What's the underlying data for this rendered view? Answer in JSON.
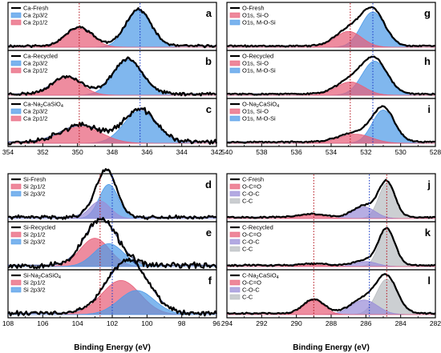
{
  "figure": {
    "xlabel_left": "Binding Energy (eV)",
    "xlabel_right": "Binding Energy (eV)"
  },
  "colors": {
    "red_fill": "#e8607a",
    "blue_fill": "#4f9be8",
    "purple_fill": "#9a8ed8",
    "gray_fill": "#b8bcc0",
    "red_ref": "#b8202a",
    "blue_ref": "#2040c8",
    "data_line": "#000000",
    "fit_line": "#1a2a6c"
  },
  "chart_data": [
    {
      "id": "a",
      "letter": "a",
      "type": "area",
      "col": "left",
      "row": 0,
      "xlim": [
        354,
        342
      ],
      "ylim": [
        0,
        1
      ],
      "legend": [
        {
          "text": "Ca-Fresh",
          "kind": "line"
        },
        {
          "text": "Ca 2p3/2",
          "kind": "blue"
        },
        {
          "text": "Ca 2p1/2",
          "kind": "red"
        }
      ],
      "peaks": [
        {
          "center": 346.5,
          "height": 0.88,
          "fwhm": 1.7,
          "color": "blue"
        },
        {
          "center": 349.9,
          "height": 0.45,
          "fwhm": 1.8,
          "color": "red"
        }
      ],
      "refs": [
        {
          "x": 349.9,
          "color": "red"
        },
        {
          "x": 346.4,
          "color": "blue"
        }
      ],
      "noise": 0.025,
      "seed": 11
    },
    {
      "id": "b",
      "letter": "b",
      "type": "area",
      "col": "left",
      "row": 1,
      "xlim": [
        354,
        342
      ],
      "ylim": [
        0,
        1
      ],
      "legend": [
        {
          "text": "Ca-Recycled",
          "kind": "line"
        },
        {
          "text": "Ca 2p3/2",
          "kind": "blue"
        },
        {
          "text": "Ca 2p1/2",
          "kind": "red"
        }
      ],
      "peaks": [
        {
          "center": 347.1,
          "height": 0.84,
          "fwhm": 2.0,
          "color": "blue"
        },
        {
          "center": 350.6,
          "height": 0.42,
          "fwhm": 2.0,
          "color": "red"
        }
      ],
      "refs": [
        {
          "x": 349.9,
          "color": "red"
        },
        {
          "x": 346.4,
          "color": "blue"
        }
      ],
      "noise": 0.03,
      "seed": 23
    },
    {
      "id": "c",
      "letter": "c",
      "type": "area",
      "col": "left",
      "row": 2,
      "xlim": [
        354,
        342
      ],
      "ylim": [
        0,
        1
      ],
      "legend": [
        {
          "text": "Ca-Na",
          "sub": "2",
          "tail": "CaSiO",
          "sub2": "4",
          "kind": "line"
        },
        {
          "text": "Ca 2p3/2",
          "kind": "blue"
        },
        {
          "text": "Ca 2p1/2",
          "kind": "red"
        }
      ],
      "peaks": [
        {
          "center": 346.4,
          "height": 0.78,
          "fwhm": 2.2,
          "color": "blue"
        },
        {
          "center": 349.8,
          "height": 0.4,
          "fwhm": 2.8,
          "color": "red"
        }
      ],
      "refs": [
        {
          "x": 349.9,
          "color": "red"
        },
        {
          "x": 346.4,
          "color": "blue"
        }
      ],
      "noise": 0.05,
      "seed": 37
    },
    {
      "id": "d",
      "letter": "d",
      "type": "area",
      "col": "left",
      "row": 3,
      "xlim": [
        108,
        96
      ],
      "ylim": [
        0,
        1
      ],
      "legend": [
        {
          "text": "Si-Fresh",
          "kind": "line"
        },
        {
          "text": "Si 2p1/2",
          "kind": "red"
        },
        {
          "text": "Si 2p3/2",
          "kind": "blue"
        }
      ],
      "peaks": [
        {
          "center": 102.2,
          "height": 0.82,
          "fwhm": 1.3,
          "color": "blue"
        },
        {
          "center": 102.7,
          "height": 0.42,
          "fwhm": 1.4,
          "color": "purple"
        }
      ],
      "refs": [
        {
          "x": 102.7,
          "color": "red"
        },
        {
          "x": 102.0,
          "color": "blue"
        }
      ],
      "noise": 0.035,
      "seed": 41
    },
    {
      "id": "e",
      "letter": "e",
      "type": "area",
      "col": "left",
      "row": 4,
      "xlim": [
        108,
        96
      ],
      "ylim": [
        0,
        1
      ],
      "legend": [
        {
          "text": "Si-Recycled",
          "kind": "line"
        },
        {
          "text": "Si 2p1/2",
          "kind": "red"
        },
        {
          "text": "Si 2p3/2",
          "kind": "blue"
        }
      ],
      "peaks": [
        {
          "center": 103.0,
          "height": 0.68,
          "fwhm": 2.0,
          "color": "red"
        },
        {
          "center": 102.2,
          "height": 0.55,
          "fwhm": 2.0,
          "color": "blue"
        }
      ],
      "refs": [
        {
          "x": 102.7,
          "color": "red"
        },
        {
          "x": 102.0,
          "color": "blue"
        }
      ],
      "noise": 0.06,
      "seed": 53
    },
    {
      "id": "f",
      "letter": "f",
      "type": "area",
      "col": "left",
      "row": 5,
      "xlim": [
        108,
        96
      ],
      "ylim": [
        0,
        1
      ],
      "legend": [
        {
          "text": "Si-Na",
          "sub": "2",
          "tail": "CaSiO",
          "sub2": "4",
          "kind": "line"
        },
        {
          "text": "Si 2p1/2",
          "kind": "red"
        },
        {
          "text": "Si 2p3/2",
          "kind": "blue"
        }
      ],
      "peaks": [
        {
          "center": 101.5,
          "height": 0.82,
          "fwhm": 2.6,
          "color": "red"
        },
        {
          "center": 100.6,
          "height": 0.58,
          "fwhm": 2.4,
          "color": "blue"
        }
      ],
      "refs": [
        {
          "x": 102.7,
          "color": "red"
        },
        {
          "x": 102.0,
          "color": "blue"
        }
      ],
      "noise": 0.045,
      "seed": 61
    },
    {
      "id": "g",
      "letter": "g",
      "type": "area",
      "col": "right",
      "row": 0,
      "xlim": [
        540,
        528
      ],
      "ylim": [
        0,
        1
      ],
      "legend": [
        {
          "text": "O-Fresh",
          "kind": "line"
        },
        {
          "text": "O1s, Si-O",
          "kind": "red"
        },
        {
          "text": "O1s, M-O-Si",
          "kind": "blue"
        }
      ],
      "peaks": [
        {
          "center": 531.6,
          "height": 0.85,
          "fwhm": 1.6,
          "color": "blue"
        },
        {
          "center": 533.0,
          "height": 0.38,
          "fwhm": 1.8,
          "color": "red"
        }
      ],
      "refs": [
        {
          "x": 532.9,
          "color": "red"
        },
        {
          "x": 531.6,
          "color": "blue"
        }
      ],
      "noise": 0.015,
      "seed": 71
    },
    {
      "id": "h",
      "letter": "h",
      "type": "area",
      "col": "right",
      "row": 1,
      "xlim": [
        540,
        528
      ],
      "ylim": [
        0,
        1
      ],
      "legend": [
        {
          "text": "O-Recycled",
          "kind": "line"
        },
        {
          "text": "O1s, Si-O",
          "kind": "red"
        },
        {
          "text": "O1s, M-O-Si",
          "kind": "blue"
        }
      ],
      "peaks": [
        {
          "center": 531.5,
          "height": 0.82,
          "fwhm": 1.7,
          "color": "blue"
        },
        {
          "center": 532.9,
          "height": 0.32,
          "fwhm": 1.9,
          "color": "red"
        }
      ],
      "refs": [
        {
          "x": 532.9,
          "color": "red"
        },
        {
          "x": 531.6,
          "color": "blue"
        }
      ],
      "noise": 0.015,
      "seed": 83
    },
    {
      "id": "i",
      "letter": "i",
      "type": "area",
      "col": "right",
      "row": 2,
      "xlim": [
        540,
        528
      ],
      "ylim": [
        0,
        1
      ],
      "legend": [
        {
          "text": "O-Na",
          "sub": "2",
          "tail": "CaSiO",
          "sub2": "4",
          "kind": "line"
        },
        {
          "text": "O1s, Si-O",
          "kind": "red"
        },
        {
          "text": "O1s, M-O-Si",
          "kind": "blue"
        }
      ],
      "peaks": [
        {
          "center": 531.0,
          "height": 0.8,
          "fwhm": 1.5,
          "color": "blue"
        },
        {
          "center": 532.6,
          "height": 0.22,
          "fwhm": 2.2,
          "color": "red"
        }
      ],
      "refs": [
        {
          "x": 532.9,
          "color": "red"
        },
        {
          "x": 531.6,
          "color": "blue"
        }
      ],
      "noise": 0.015,
      "seed": 97
    },
    {
      "id": "j",
      "letter": "j",
      "type": "area",
      "col": "right",
      "row": 3,
      "xlim": [
        294,
        282
      ],
      "ylim": [
        0,
        1
      ],
      "legend": [
        {
          "text": "C-Fresh",
          "kind": "line"
        },
        {
          "text": "O-C=O",
          "kind": "red"
        },
        {
          "text": "C-O-C",
          "kind": "purple"
        },
        {
          "text": "C-C",
          "kind": "gray"
        }
      ],
      "peaks": [
        {
          "center": 284.8,
          "height": 0.85,
          "fwhm": 1.1,
          "color": "gray"
        },
        {
          "center": 286.1,
          "height": 0.28,
          "fwhm": 1.5,
          "color": "purple"
        },
        {
          "center": 289.1,
          "height": 0.08,
          "fwhm": 1.8,
          "color": "red"
        }
      ],
      "refs": [
        {
          "x": 289.0,
          "color": "red"
        },
        {
          "x": 285.8,
          "color": "blue"
        },
        {
          "x": 284.8,
          "color": "red"
        }
      ],
      "noise": 0.015,
      "seed": 101
    },
    {
      "id": "k",
      "letter": "k",
      "type": "area",
      "col": "right",
      "row": 4,
      "xlim": [
        294,
        282
      ],
      "ylim": [
        0,
        1
      ],
      "legend": [
        {
          "text": "C-Recycled",
          "kind": "line"
        },
        {
          "text": "O-C=O",
          "kind": "red"
        },
        {
          "text": "C-O-C",
          "kind": "purple"
        },
        {
          "text": "C-C",
          "kind": "gray"
        }
      ],
      "peaks": [
        {
          "center": 284.8,
          "height": 0.88,
          "fwhm": 1.1,
          "color": "gray"
        },
        {
          "center": 286.0,
          "height": 0.12,
          "fwhm": 1.5,
          "color": "purple"
        },
        {
          "center": 289.0,
          "height": 0.04,
          "fwhm": 1.8,
          "color": "red"
        }
      ],
      "refs": [
        {
          "x": 289.0,
          "color": "red"
        },
        {
          "x": 285.8,
          "color": "blue"
        },
        {
          "x": 284.8,
          "color": "red"
        }
      ],
      "noise": 0.015,
      "seed": 113
    },
    {
      "id": "l",
      "letter": "l",
      "type": "area",
      "col": "right",
      "row": 5,
      "xlim": [
        294,
        282
      ],
      "ylim": [
        0,
        1
      ],
      "legend": [
        {
          "text": "C-Na",
          "sub": "2",
          "tail": "CaSiO",
          "sub2": "4",
          "kind": "line"
        },
        {
          "text": "O-C=O",
          "kind": "red"
        },
        {
          "text": "C-O-C",
          "kind": "purple"
        },
        {
          "text": "C-C",
          "kind": "gray"
        }
      ],
      "peaks": [
        {
          "center": 284.8,
          "height": 0.85,
          "fwhm": 1.4,
          "color": "gray"
        },
        {
          "center": 286.1,
          "height": 0.35,
          "fwhm": 1.8,
          "color": "purple"
        },
        {
          "center": 289.0,
          "height": 0.34,
          "fwhm": 1.4,
          "color": "red"
        }
      ],
      "refs": [
        {
          "x": 289.0,
          "color": "red"
        },
        {
          "x": 285.8,
          "color": "blue"
        },
        {
          "x": 284.8,
          "color": "red"
        }
      ],
      "noise": 0.015,
      "seed": 127
    }
  ],
  "axes": [
    {
      "id": "ca",
      "col": "left",
      "block": "top",
      "ticks": [
        354,
        352,
        350,
        348,
        346,
        344,
        342
      ]
    },
    {
      "id": "si",
      "col": "left",
      "block": "bottom",
      "ticks": [
        108,
        106,
        104,
        102,
        100,
        98,
        96
      ]
    },
    {
      "id": "o",
      "col": "right",
      "block": "top",
      "ticks": [
        540,
        538,
        536,
        534,
        532,
        530,
        528
      ]
    },
    {
      "id": "c",
      "col": "right",
      "block": "bottom",
      "ticks": [
        294,
        292,
        290,
        288,
        286,
        284,
        282
      ]
    }
  ]
}
